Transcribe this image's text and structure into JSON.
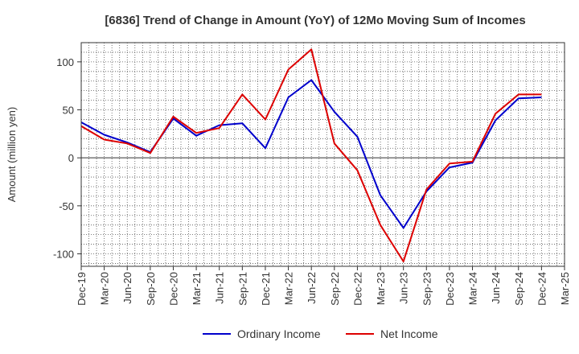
{
  "chart_data": {
    "type": "line",
    "title": "[6836]  Trend of Change in Amount (YoY) of 12Mo Moving Sum of Incomes",
    "ylabel": "Amount (million yen)",
    "xlabel": "",
    "ylim": [
      -113,
      120
    ],
    "yticks": [
      100,
      50,
      0,
      -50,
      -100
    ],
    "ytick_labels": [
      "100",
      "50",
      "0",
      "-50",
      "-100"
    ],
    "grid": true,
    "legend_position": "bottom",
    "x": [
      "Dec-19",
      "Mar-20",
      "Jun-20",
      "Sep-20",
      "Dec-20",
      "Mar-21",
      "Jun-21",
      "Sep-21",
      "Dec-21",
      "Mar-22",
      "Jun-22",
      "Sep-22",
      "Dec-22",
      "Mar-23",
      "Jun-23",
      "Sep-23",
      "Dec-23",
      "Mar-24",
      "Jun-24",
      "Sep-24",
      "Dec-24",
      "Mar-25"
    ],
    "series": [
      {
        "name": "Ordinary Income",
        "color": "#0000cc",
        "values": [
          37,
          24,
          16,
          6,
          41,
          23,
          34,
          36,
          10,
          63,
          81,
          48,
          22,
          -39,
          -73,
          -35,
          -10,
          -5,
          39,
          62,
          63,
          null
        ]
      },
      {
        "name": "Net Income",
        "color": "#dd0000",
        "values": [
          33,
          19,
          15,
          5,
          43,
          26,
          31,
          66,
          40,
          92,
          113,
          15,
          -13,
          -70,
          -108,
          -33,
          -6,
          -4,
          46,
          66,
          66,
          null
        ]
      }
    ]
  }
}
